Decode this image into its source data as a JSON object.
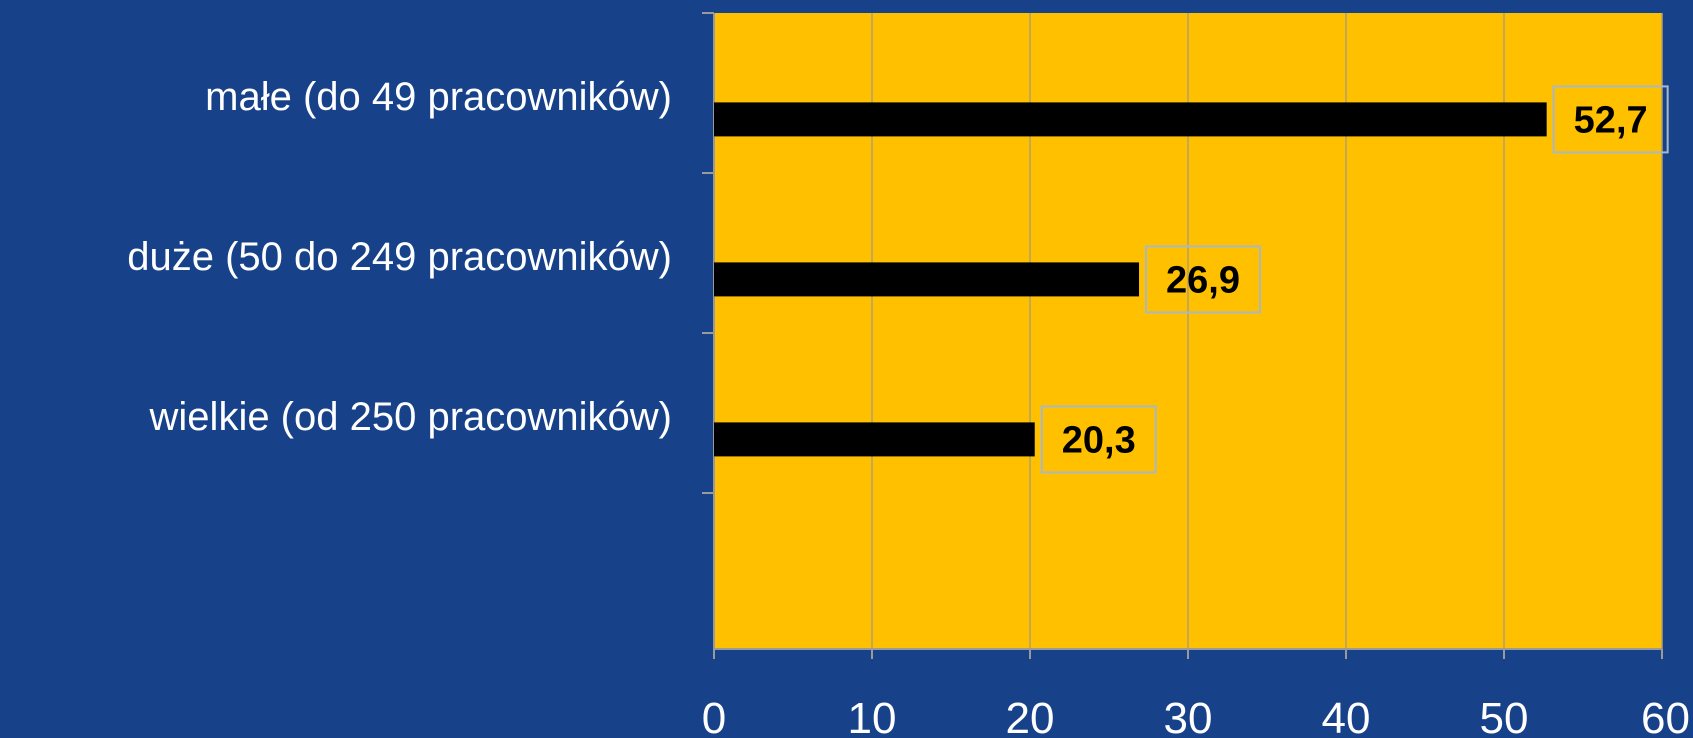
{
  "chart_data": {
    "type": "bar",
    "orientation": "horizontal",
    "categories": [
      "małe (do 49 pracowników)",
      "duże (50 do 249 pracowników)",
      "wielkie (od 250 pracowników)"
    ],
    "values": [
      52.7,
      26.9,
      20.3
    ],
    "data_labels": [
      "52,7",
      "26,9",
      "20,3"
    ],
    "xlim": [
      0,
      60
    ],
    "xticks": [
      0,
      10,
      20,
      30,
      40,
      50,
      60
    ],
    "grid": true,
    "colors": {
      "background": "#17428a",
      "plot_area": "#ffc000",
      "bar": "#000000",
      "gridline": "#b0a070",
      "axis": "#9a9a9a",
      "label_border": "#a8b8c8",
      "text": "#ffffff"
    }
  }
}
